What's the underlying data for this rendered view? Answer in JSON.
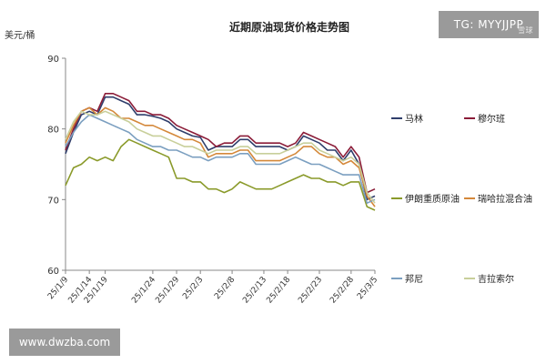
{
  "chart_data": {
    "type": "line",
    "title": "近期原油现货价格走势图",
    "ylabel": "美元/桶",
    "ylim": [
      60,
      90
    ],
    "yticks": [
      60,
      70,
      80,
      90
    ],
    "grid": false,
    "legend_position": "right",
    "x": [
      "25/1/9",
      "25/1/10",
      "25/1/13",
      "25/1/14",
      "25/1/15",
      "25/1/16",
      "25/1/17",
      "25/1/20",
      "25/1/21",
      "25/1/22",
      "25/1/23",
      "25/1/24",
      "25/1/27",
      "25/1/28",
      "25/1/29",
      "25/1/30",
      "25/1/31",
      "25/2/3",
      "25/2/4",
      "25/2/5",
      "25/2/6",
      "25/2/7",
      "25/2/10",
      "25/2/11",
      "25/2/12",
      "25/2/13",
      "25/2/14",
      "25/2/17",
      "25/2/18",
      "25/2/19",
      "25/2/20",
      "25/2/21",
      "25/2/24",
      "25/2/25",
      "25/2/26",
      "25/2/27",
      "25/2/28",
      "25/3/3",
      "25/3/4",
      "25/3/5"
    ],
    "xtick_labels": [
      "25/1/9",
      "25/1/14",
      "25/1/19",
      "25/1/24",
      "25/1/29",
      "25/2/3",
      "25/2/8",
      "25/2/13",
      "25/2/18",
      "25/2/23",
      "25/2/28",
      "25/3/5"
    ],
    "xtick_positions": [
      0,
      3,
      5,
      11,
      14,
      17,
      21,
      25,
      28,
      32,
      36,
      39
    ],
    "series": [
      {
        "name": "马林",
        "color": "#2f3e6b",
        "values": [
          76.5,
          79.5,
          82.0,
          82.5,
          82.0,
          84.5,
          84.5,
          84.0,
          83.5,
          82.0,
          82.0,
          81.8,
          81.5,
          81.0,
          80.0,
          79.5,
          79.0,
          78.8,
          77.0,
          77.5,
          77.5,
          77.5,
          78.5,
          78.5,
          77.5,
          77.5,
          77.5,
          77.5,
          77.0,
          77.5,
          79.0,
          78.5,
          78.0,
          77.0,
          77.0,
          75.5,
          77.0,
          75.0,
          70.0,
          70.5
        ]
      },
      {
        "name": "穆尔班",
        "color": "#8b1c38",
        "values": [
          77.0,
          80.0,
          82.5,
          83.0,
          82.5,
          85.0,
          85.0,
          84.5,
          84.0,
          82.5,
          82.5,
          82.0,
          82.0,
          81.5,
          80.5,
          80.0,
          79.5,
          79.0,
          78.5,
          77.5,
          78.0,
          78.0,
          79.0,
          79.0,
          78.0,
          78.0,
          78.0,
          78.0,
          77.5,
          78.0,
          79.5,
          79.0,
          78.5,
          78.0,
          77.5,
          76.0,
          77.5,
          76.0,
          71.0,
          71.5
        ]
      },
      {
        "name": "伊朗重质原油",
        "color": "#8a9a2a",
        "values": [
          72.0,
          74.5,
          75.0,
          76.0,
          75.5,
          76.0,
          75.5,
          77.5,
          78.5,
          78.0,
          77.5,
          77.0,
          76.5,
          76.0,
          73.0,
          73.0,
          72.5,
          72.5,
          71.5,
          71.5,
          71.0,
          71.5,
          72.5,
          72.0,
          71.5,
          71.5,
          71.5,
          72.0,
          72.5,
          73.0,
          73.5,
          73.0,
          73.0,
          72.5,
          72.5,
          72.0,
          72.5,
          72.5,
          69.0,
          68.5
        ]
      },
      {
        "name": "瑞哈拉混合油",
        "color": "#d4883a",
        "values": [
          78.0,
          80.5,
          82.5,
          83.0,
          82.0,
          83.0,
          82.5,
          81.5,
          81.5,
          81.0,
          80.5,
          80.5,
          80.0,
          79.5,
          79.0,
          78.5,
          78.5,
          78.0,
          76.0,
          76.5,
          76.5,
          76.5,
          77.0,
          77.0,
          75.5,
          75.5,
          75.5,
          75.5,
          76.0,
          76.5,
          77.5,
          77.5,
          76.5,
          76.0,
          76.0,
          75.0,
          75.5,
          74.5,
          70.5,
          69.0
        ]
      },
      {
        "name": "邦尼",
        "color": "#7b9fc0",
        "values": [
          77.5,
          79.5,
          81.0,
          82.0,
          81.5,
          81.0,
          80.5,
          80.0,
          79.5,
          78.5,
          78.0,
          77.5,
          77.5,
          77.0,
          77.0,
          76.5,
          76.0,
          76.0,
          75.5,
          76.0,
          76.0,
          76.0,
          76.5,
          76.5,
          75.0,
          75.0,
          75.0,
          75.0,
          75.5,
          76.0,
          75.5,
          75.0,
          75.0,
          74.5,
          74.0,
          73.5,
          73.5,
          73.5,
          69.5,
          70.0
        ]
      },
      {
        "name": "吉拉索尔",
        "color": "#c8cf9a",
        "values": [
          78.5,
          81.0,
          82.5,
          82.0,
          82.0,
          82.5,
          82.0,
          81.5,
          81.0,
          80.0,
          79.5,
          79.0,
          79.0,
          78.5,
          78.0,
          77.5,
          77.5,
          77.0,
          76.5,
          77.0,
          77.0,
          77.0,
          77.5,
          77.5,
          76.5,
          76.5,
          76.5,
          76.5,
          77.0,
          77.5,
          78.0,
          78.0,
          77.0,
          76.5,
          76.0,
          75.5,
          76.0,
          75.0,
          71.0,
          69.5
        ]
      }
    ]
  },
  "watermarks": {
    "top": "TG: MYYJJPP",
    "top_logo": "雪球",
    "bottom": "www.dwzba.com"
  }
}
